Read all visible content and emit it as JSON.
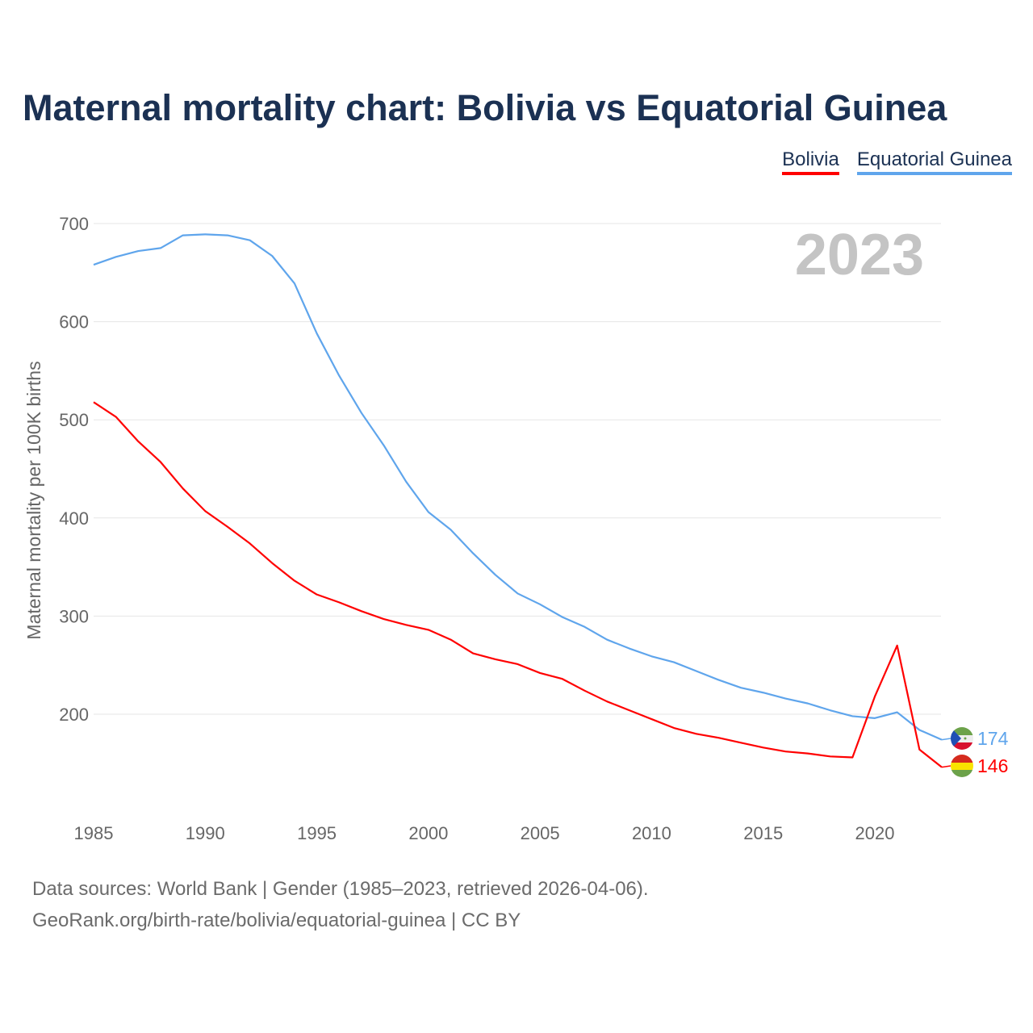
{
  "title": "Maternal mortality chart: Bolivia vs Equatorial Guinea",
  "legend": [
    {
      "label": "Bolivia",
      "color": "#ff0000"
    },
    {
      "label": "Equatorial Guinea",
      "color": "#5fa5ec"
    }
  ],
  "year_watermark": "2023",
  "footer": {
    "line1": "Data sources: World Bank | Gender (1985–2023, retrieved 2026-04-06).",
    "line2": "GeoRank.org/birth-rate/bolivia/equatorial-guinea | CC BY"
  },
  "chart_data": {
    "type": "line",
    "title": "Maternal mortality chart: Bolivia vs Equatorial Guinea",
    "xlabel": "",
    "ylabel": "Maternal mortality per 100K births",
    "xlim": [
      1985,
      2023
    ],
    "ylim": [
      115,
      720
    ],
    "xticks": [
      1985,
      1990,
      1995,
      2000,
      2005,
      2010,
      2015,
      2020
    ],
    "yticks": [
      200,
      300,
      400,
      500,
      600,
      700
    ],
    "grid": true,
    "legend_position": "top-right",
    "x": [
      1985,
      1986,
      1987,
      1988,
      1989,
      1990,
      1991,
      1992,
      1993,
      1994,
      1995,
      1996,
      1997,
      1998,
      1999,
      2000,
      2001,
      2002,
      2003,
      2004,
      2005,
      2006,
      2007,
      2008,
      2009,
      2010,
      2011,
      2012,
      2013,
      2014,
      2015,
      2016,
      2017,
      2018,
      2019,
      2020,
      2021,
      2022,
      2023
    ],
    "series": [
      {
        "name": "Bolivia",
        "color": "#ff0000",
        "end_label": "146",
        "values": [
          518,
          503,
          478,
          457,
          430,
          407,
          391,
          374,
          354,
          336,
          322,
          314,
          305,
          297,
          291,
          286,
          276,
          262,
          256,
          251,
          242,
          236,
          224,
          213,
          204,
          195,
          186,
          180,
          176,
          171,
          166,
          162,
          160,
          157,
          156,
          218,
          270,
          164,
          146
        ]
      },
      {
        "name": "Equatorial Guinea",
        "color": "#5fa5ec",
        "end_label": "174",
        "values": [
          658,
          666,
          672,
          675,
          688,
          689,
          688,
          683,
          667,
          639,
          588,
          545,
          507,
          474,
          437,
          406,
          388,
          364,
          342,
          323,
          312,
          299,
          289,
          276,
          267,
          259,
          253,
          244,
          235,
          227,
          222,
          216,
          211,
          204,
          198,
          196,
          202,
          184,
          174
        ]
      }
    ]
  }
}
